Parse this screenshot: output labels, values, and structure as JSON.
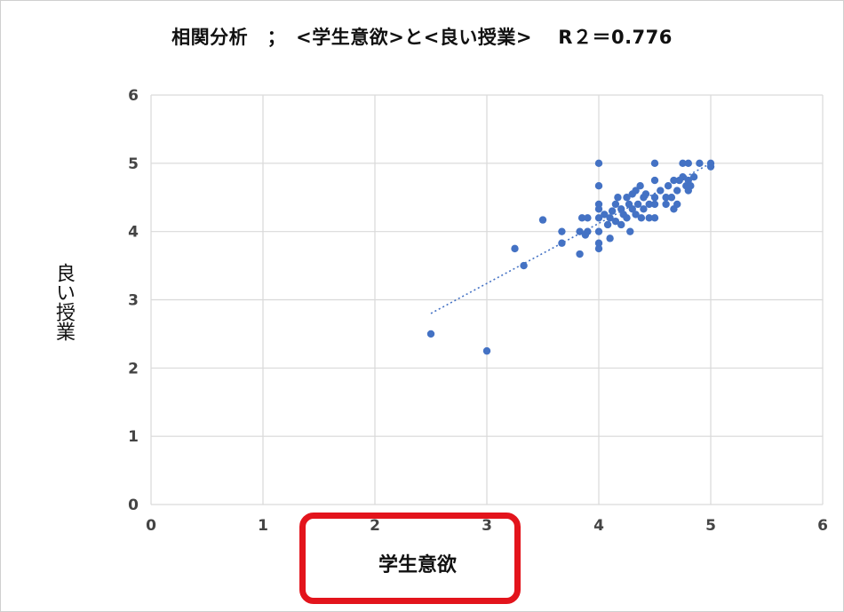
{
  "chart_data": {
    "type": "scatter",
    "title": "相関分析　；　<学生意欲>と<良い授業>　 R２＝0.776",
    "xlabel": "学生意欲",
    "ylabel": "良い授業",
    "xlim": [
      0,
      6
    ],
    "ylim": [
      0,
      6
    ],
    "x_ticks": [
      "0",
      "1",
      "2",
      "3",
      "4",
      "5",
      "6"
    ],
    "y_ticks": [
      "0",
      "1",
      "2",
      "3",
      "4",
      "5",
      "6"
    ],
    "grid": true,
    "trendline": {
      "style": "dotted",
      "x": [
        2.5,
        5.0
      ],
      "y": [
        2.8,
        5.0
      ]
    },
    "highlight": "xlabel",
    "colors": {
      "points": "#4472c4",
      "trendline": "#4472c4",
      "grid": "#d9d9d9",
      "highlight": "#e3141c"
    },
    "points": [
      [
        2.5,
        2.5
      ],
      [
        3.0,
        2.25
      ],
      [
        3.25,
        3.75
      ],
      [
        3.33,
        3.5
      ],
      [
        3.5,
        4.17
      ],
      [
        3.67,
        4.0
      ],
      [
        3.67,
        3.83
      ],
      [
        3.83,
        4.0
      ],
      [
        3.83,
        3.67
      ],
      [
        3.85,
        4.2
      ],
      [
        3.88,
        3.95
      ],
      [
        3.9,
        4.2
      ],
      [
        3.9,
        4.0
      ],
      [
        4.0,
        5.0
      ],
      [
        4.0,
        4.67
      ],
      [
        4.0,
        4.4
      ],
      [
        4.0,
        4.33
      ],
      [
        4.0,
        4.2
      ],
      [
        4.0,
        4.0
      ],
      [
        4.0,
        3.83
      ],
      [
        4.0,
        3.75
      ],
      [
        4.05,
        4.25
      ],
      [
        4.08,
        4.1
      ],
      [
        4.1,
        4.2
      ],
      [
        4.1,
        3.9
      ],
      [
        4.12,
        4.3
      ],
      [
        4.15,
        4.4
      ],
      [
        4.15,
        4.15
      ],
      [
        4.17,
        4.5
      ],
      [
        4.2,
        4.33
      ],
      [
        4.2,
        4.1
      ],
      [
        4.22,
        4.25
      ],
      [
        4.25,
        4.5
      ],
      [
        4.25,
        4.2
      ],
      [
        4.27,
        4.4
      ],
      [
        4.28,
        4.0
      ],
      [
        4.3,
        4.33
      ],
      [
        4.3,
        4.55
      ],
      [
        4.33,
        4.6
      ],
      [
        4.33,
        4.25
      ],
      [
        4.35,
        4.4
      ],
      [
        4.37,
        4.67
      ],
      [
        4.38,
        4.2
      ],
      [
        4.4,
        4.5
      ],
      [
        4.4,
        4.33
      ],
      [
        4.42,
        4.55
      ],
      [
        4.45,
        4.4
      ],
      [
        4.45,
        4.2
      ],
      [
        4.5,
        5.0
      ],
      [
        4.5,
        4.75
      ],
      [
        4.5,
        4.5
      ],
      [
        4.5,
        4.4
      ],
      [
        4.5,
        4.2
      ],
      [
        4.55,
        4.6
      ],
      [
        4.6,
        4.5
      ],
      [
        4.6,
        4.4
      ],
      [
        4.62,
        4.67
      ],
      [
        4.65,
        4.5
      ],
      [
        4.67,
        4.75
      ],
      [
        4.67,
        4.33
      ],
      [
        4.7,
        4.6
      ],
      [
        4.7,
        4.4
      ],
      [
        4.72,
        4.75
      ],
      [
        4.75,
        5.0
      ],
      [
        4.75,
        4.8
      ],
      [
        4.78,
        4.67
      ],
      [
        4.8,
        5.0
      ],
      [
        4.8,
        4.75
      ],
      [
        4.8,
        4.6
      ],
      [
        4.82,
        4.67
      ],
      [
        4.85,
        4.8
      ],
      [
        4.9,
        5.0
      ],
      [
        5.0,
        5.0
      ],
      [
        5.0,
        4.95
      ]
    ]
  }
}
